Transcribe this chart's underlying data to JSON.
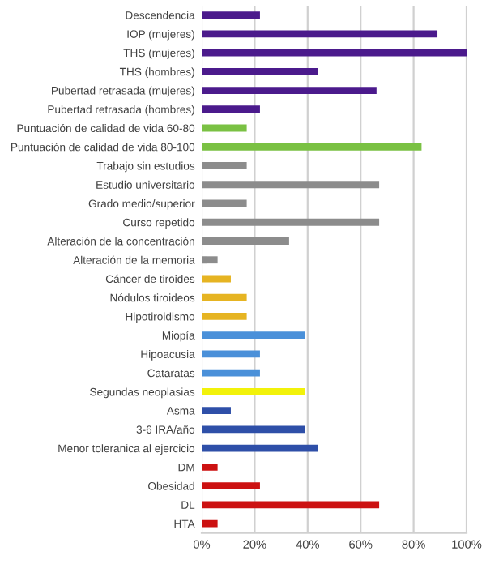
{
  "chart_data": {
    "type": "bar",
    "orientation": "horizontal",
    "categories": [
      "Descendencia",
      "IOP (mujeres)",
      "THS (mujeres)",
      "THS (hombres)",
      "Pubertad retrasada (mujeres)",
      "Pubertad retrasada (hombres)",
      "Puntuación de calidad de vida 60-80",
      "Puntuación de calidad de vida 80-100",
      "Trabajo sin estudios",
      "Estudio universitario",
      "Grado medio/superior",
      "Curso repetido",
      "Alteración de la concentración",
      "Alteración de la memoria",
      "Cáncer de tiroides",
      "Nódulos tiroideos",
      "Hipotiroidismo",
      "Miopía",
      "Hipoacusia",
      "Cataratas",
      "Segundas neoplasias",
      "Asma",
      "3-6 IRA/año",
      "Menor toleranica al ejercicio",
      "DM",
      "Obesidad",
      "DL",
      "HTA"
    ],
    "values": [
      22,
      89,
      100,
      44,
      66,
      22,
      17,
      83,
      17,
      67,
      17,
      67,
      33,
      6,
      11,
      17,
      17,
      39,
      22,
      22,
      39,
      11,
      39,
      44,
      6,
      22,
      67,
      6
    ],
    "colors": [
      "#4b1a8c",
      "#4b1a8c",
      "#4b1a8c",
      "#4b1a8c",
      "#4b1a8c",
      "#4b1a8c",
      "#7ac143",
      "#7ac143",
      "#8c8c8c",
      "#8c8c8c",
      "#8c8c8c",
      "#8c8c8c",
      "#8c8c8c",
      "#8c8c8c",
      "#e6b422",
      "#e6b422",
      "#e6b422",
      "#4a90d9",
      "#4a90d9",
      "#4a90d9",
      "#f2f20a",
      "#2e4fa8",
      "#2e4fa8",
      "#2e4fa8",
      "#cc1111",
      "#cc1111",
      "#cc1111",
      "#cc1111"
    ],
    "xlim": [
      0,
      100
    ],
    "xticks": [
      {
        "value": 0,
        "label": "0%"
      },
      {
        "value": 20,
        "label": "20%"
      },
      {
        "value": 40,
        "label": "40%"
      },
      {
        "value": 60,
        "label": "60%"
      },
      {
        "value": 80,
        "label": "80%"
      },
      {
        "value": 100,
        "label": "100%"
      }
    ],
    "grid": "x"
  }
}
